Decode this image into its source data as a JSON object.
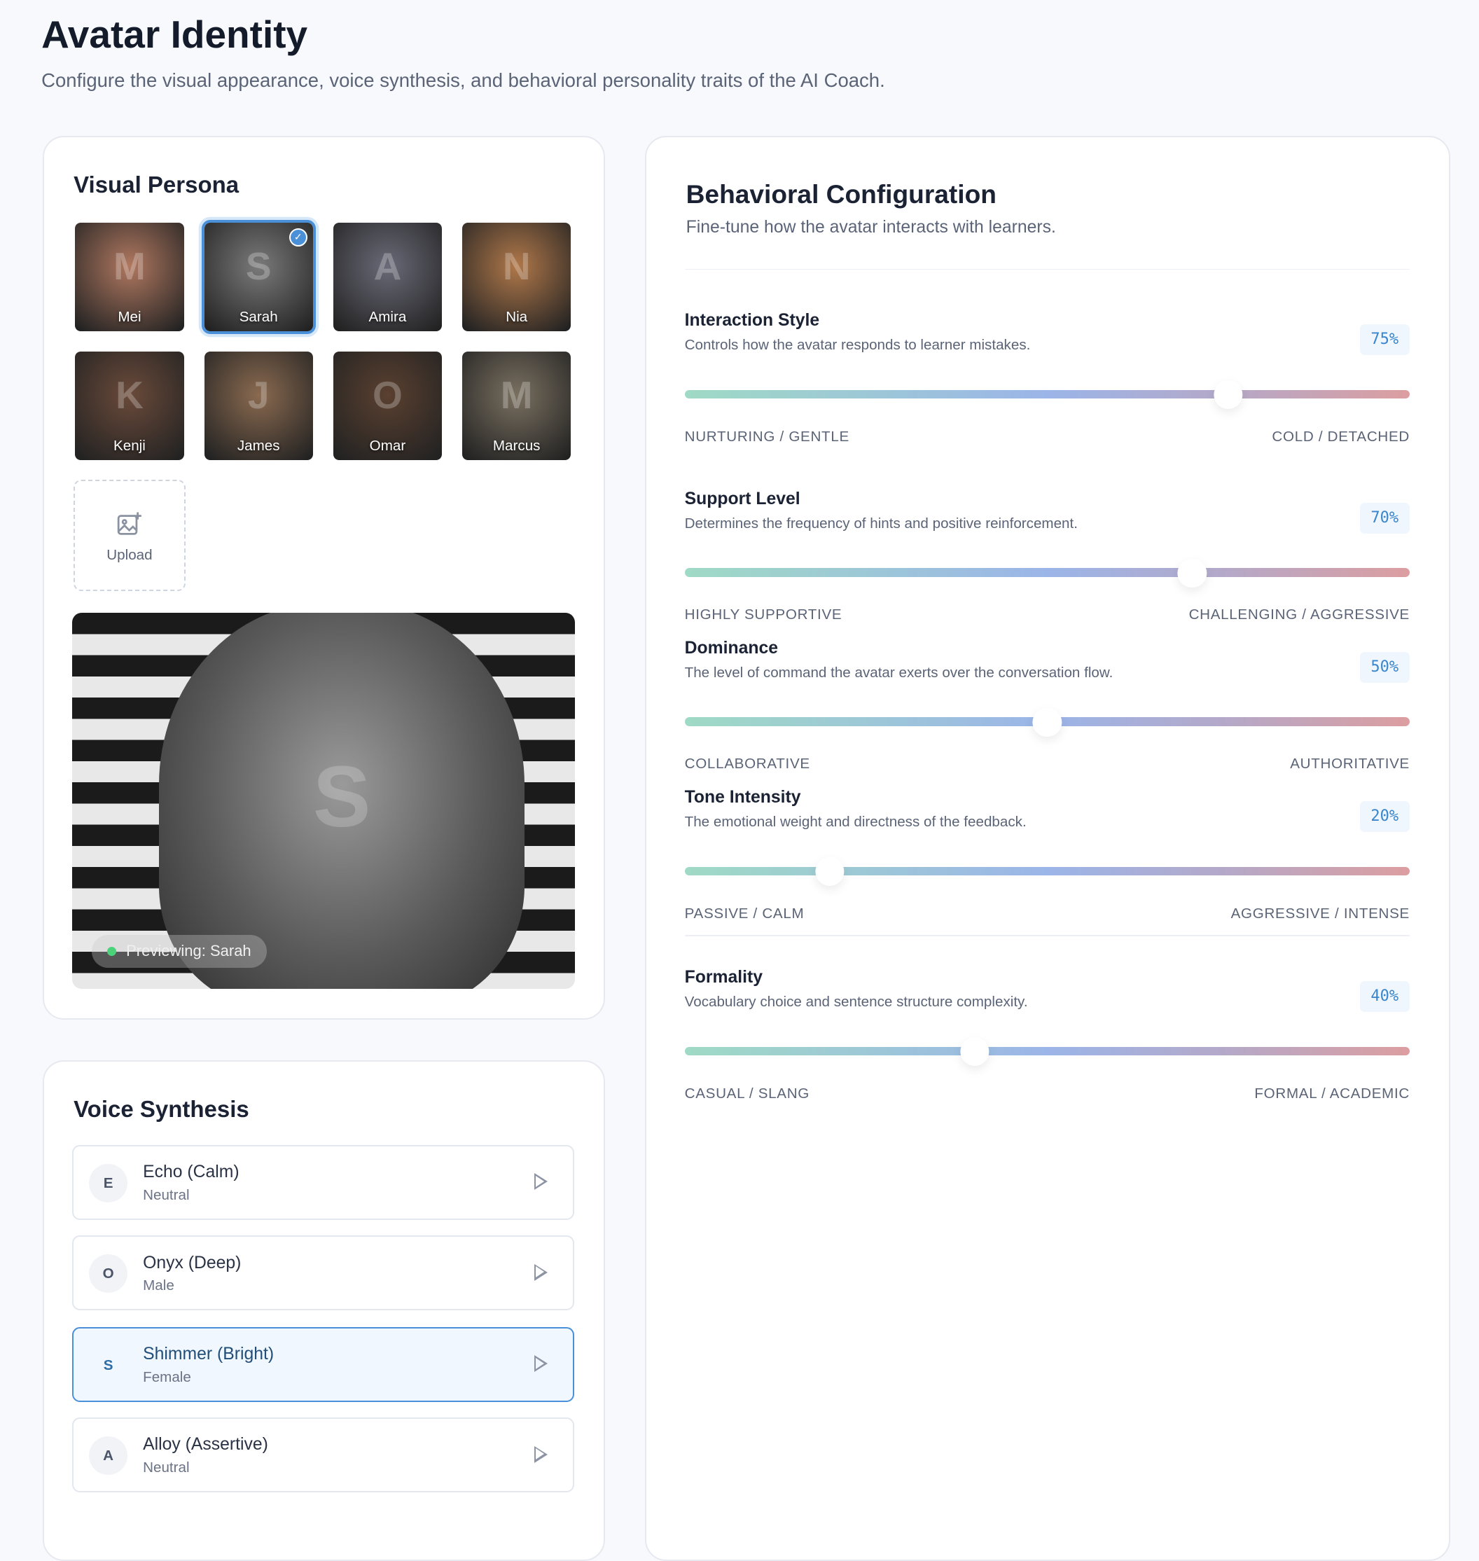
{
  "header": {
    "title": "Avatar Identity",
    "subtitle": "Configure the visual appearance, voice synthesis, and behavioral personality traits of the AI Coach."
  },
  "visual_persona": {
    "title": "Visual Persona",
    "avatars": [
      {
        "name": "Mei",
        "selected": false,
        "color": "#b07860"
      },
      {
        "name": "Sarah",
        "selected": true,
        "color": "#7a7a7a"
      },
      {
        "name": "Amira",
        "selected": false,
        "color": "#6a6a78"
      },
      {
        "name": "Nia",
        "selected": false,
        "color": "#b0784a"
      },
      {
        "name": "Kenji",
        "selected": false,
        "color": "#6a4a3a"
      },
      {
        "name": "James",
        "selected": false,
        "color": "#8a6a50"
      },
      {
        "name": "Omar",
        "selected": false,
        "color": "#5a4030"
      },
      {
        "name": "Marcus",
        "selected": false,
        "color": "#7a7060"
      }
    ],
    "upload_label": "Upload",
    "preview_label": "Previewing: Sarah"
  },
  "voice_synthesis": {
    "title": "Voice Synthesis",
    "voices": [
      {
        "initial": "E",
        "name": "Echo (Calm)",
        "type": "Neutral",
        "selected": false
      },
      {
        "initial": "O",
        "name": "Onyx (Deep)",
        "type": "Male",
        "selected": false
      },
      {
        "initial": "S",
        "name": "Shimmer (Bright)",
        "type": "Female",
        "selected": true
      },
      {
        "initial": "A",
        "name": "Alloy (Assertive)",
        "type": "Neutral",
        "selected": false
      }
    ]
  },
  "behavior": {
    "title": "Behavioral Configuration",
    "subtitle": "Fine-tune how the avatar interacts with learners.",
    "traits": [
      {
        "name": "Interaction Style",
        "desc": "Controls how the avatar responds to learner mistakes.",
        "value": 75,
        "value_label": "75%",
        "left": "NURTURING / GENTLE",
        "right": "COLD / DETACHED"
      },
      {
        "name": "Support Level",
        "desc": "Determines the frequency of hints and positive reinforcement.",
        "value": 70,
        "value_label": "70%",
        "left": "HIGHLY SUPPORTIVE",
        "right": "CHALLENGING / AGGRESSIVE"
      },
      {
        "name": "Dominance",
        "desc": "The level of command the avatar exerts over the conversation flow.",
        "value": 50,
        "value_label": "50%",
        "left": "COLLABORATIVE",
        "right": "AUTHORITATIVE"
      },
      {
        "name": "Tone Intensity",
        "desc": "The emotional weight and directness of the feedback.",
        "value": 20,
        "value_label": "20%",
        "left": "PASSIVE / CALM",
        "right": "AGGRESSIVE / INTENSE"
      },
      {
        "name": "Formality",
        "desc": "Vocabulary choice and sentence structure complexity.",
        "value": 40,
        "value_label": "40%",
        "left": "CASUAL / SLANG",
        "right": "FORMAL / ACADEMIC"
      }
    ]
  },
  "colors": {
    "accent": "#4a90d9",
    "background": "#f7f9fc"
  }
}
